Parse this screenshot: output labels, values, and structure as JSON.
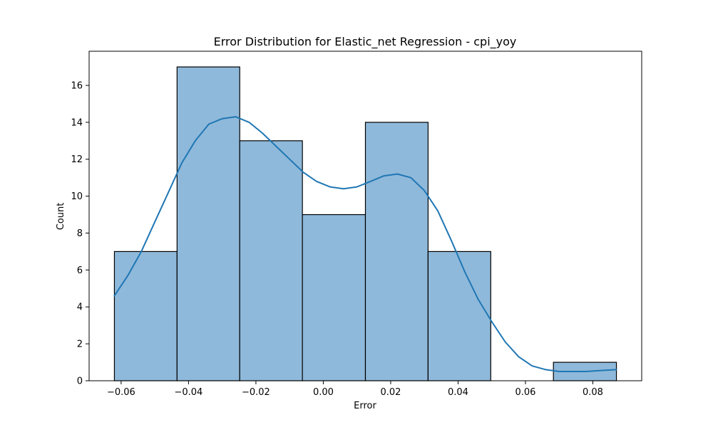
{
  "chart_data": {
    "type": "histogram",
    "title": "Error Distribution for Elastic_net Regression - cpi_yoy",
    "xlabel": "Error",
    "ylabel": "Count",
    "xlim": [
      -0.0695,
      0.0945
    ],
    "ylim": [
      0,
      17.85
    ],
    "x_ticks": [
      -0.06,
      -0.04,
      -0.02,
      0.0,
      0.02,
      0.04,
      0.06,
      0.08
    ],
    "x_tick_labels": [
      "−0.06",
      "−0.04",
      "−0.02",
      "0.00",
      "0.02",
      "0.04",
      "0.06",
      "0.08"
    ],
    "y_ticks": [
      0,
      2,
      4,
      6,
      8,
      10,
      12,
      14,
      16
    ],
    "y_tick_labels": [
      "0",
      "2",
      "4",
      "6",
      "8",
      "10",
      "12",
      "14",
      "16"
    ],
    "bins": [
      {
        "x0": -0.062,
        "x1": -0.0434,
        "count": 7
      },
      {
        "x0": -0.0434,
        "x1": -0.0248,
        "count": 17
      },
      {
        "x0": -0.0248,
        "x1": -0.0062,
        "count": 13
      },
      {
        "x0": -0.0062,
        "x1": 0.0125,
        "count": 9
      },
      {
        "x0": 0.0125,
        "x1": 0.0311,
        "count": 14
      },
      {
        "x0": 0.0311,
        "x1": 0.0497,
        "count": 7
      },
      {
        "x0": 0.0497,
        "x1": 0.0683,
        "count": 0
      },
      {
        "x0": 0.0683,
        "x1": 0.087,
        "count": 1
      }
    ],
    "kde": {
      "x": [
        -0.062,
        -0.058,
        -0.054,
        -0.05,
        -0.046,
        -0.042,
        -0.038,
        -0.034,
        -0.03,
        -0.026,
        -0.022,
        -0.018,
        -0.014,
        -0.01,
        -0.006,
        -0.002,
        0.002,
        0.006,
        0.01,
        0.014,
        0.018,
        0.022,
        0.026,
        0.03,
        0.034,
        0.038,
        0.042,
        0.046,
        0.05,
        0.054,
        0.058,
        0.062,
        0.066,
        0.07,
        0.074,
        0.078,
        0.082,
        0.087
      ],
      "y": [
        4.6,
        5.7,
        7.0,
        8.6,
        10.2,
        11.8,
        13.0,
        13.9,
        14.2,
        14.3,
        14.0,
        13.4,
        12.7,
        12.0,
        11.3,
        10.8,
        10.5,
        10.4,
        10.5,
        10.8,
        11.1,
        11.2,
        11.0,
        10.3,
        9.2,
        7.6,
        5.9,
        4.4,
        3.2,
        2.1,
        1.3,
        0.8,
        0.6,
        0.5,
        0.5,
        0.5,
        0.55,
        0.6
      ]
    },
    "colors": {
      "bar_fill": "#8fb9da",
      "bar_edge": "#000000",
      "kde_line": "#1f77b4"
    },
    "grid": false,
    "legend": "none"
  }
}
